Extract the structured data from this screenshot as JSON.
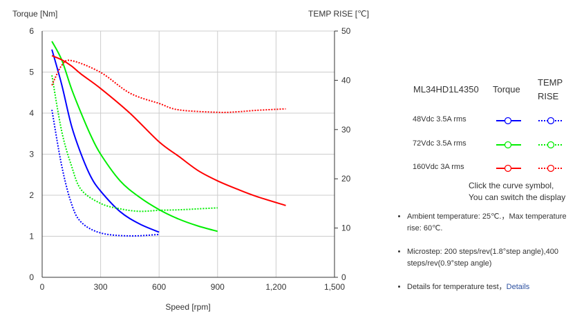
{
  "chart_data": {
    "type": "line",
    "xlabel": "Speed [rpm]",
    "ylabel": "Torque  [Nm]",
    "y2label": "TEMP RISE [℃]",
    "xlim": [
      0,
      1500
    ],
    "ylim": [
      0,
      6
    ],
    "y2lim": [
      0,
      50
    ],
    "xticks": [
      "0",
      "300",
      "600",
      "900",
      "1,200",
      "1,500"
    ],
    "yticks": [
      "0",
      "1",
      "2",
      "3",
      "4",
      "5",
      "6"
    ],
    "y2ticks": [
      "0",
      "10",
      "20",
      "30",
      "40",
      "50"
    ],
    "grid": true,
    "series": [
      {
        "name": "48Vdc 3.5A rms",
        "kind": "torque",
        "axis": "left",
        "color": "#0000ff",
        "x": [
          50,
          100,
          150,
          200,
          250,
          300,
          400,
          500,
          600
        ],
        "y": [
          5.55,
          4.7,
          3.7,
          3.0,
          2.45,
          2.1,
          1.6,
          1.3,
          1.1
        ]
      },
      {
        "name": "48Vdc 3.5A rms",
        "kind": "temp",
        "axis": "right",
        "color": "#0000ff",
        "x": [
          50,
          100,
          150,
          200,
          300,
          450,
          600
        ],
        "y": [
          34,
          22.7,
          15,
          11.2,
          9,
          8.4,
          8.7
        ]
      },
      {
        "name": "72Vdc 3.5A rms",
        "kind": "torque",
        "axis": "left",
        "color": "#00ee00",
        "x": [
          50,
          100,
          150,
          200,
          250,
          300,
          400,
          500,
          600,
          700,
          800,
          900
        ],
        "y": [
          5.75,
          5.3,
          4.6,
          4.0,
          3.45,
          3.0,
          2.35,
          1.95,
          1.65,
          1.42,
          1.25,
          1.12
        ]
      },
      {
        "name": "72Vdc 3.5A rms",
        "kind": "temp",
        "axis": "right",
        "color": "#00ee00",
        "x": [
          50,
          100,
          150,
          200,
          300,
          400,
          500,
          600,
          700,
          800,
          900
        ],
        "y": [
          41,
          29.7,
          22.7,
          17.8,
          15,
          13.9,
          13.4,
          13.6,
          13.7,
          13.9,
          14.1
        ]
      },
      {
        "name": "160Vdc 3A rms",
        "kind": "torque",
        "axis": "left",
        "color": "#ff0000",
        "x": [
          50,
          100,
          150,
          200,
          300,
          450,
          600,
          700,
          800,
          900,
          1000,
          1100,
          1250
        ],
        "y": [
          5.4,
          5.3,
          5.15,
          4.95,
          4.6,
          4.0,
          3.3,
          2.95,
          2.6,
          2.35,
          2.15,
          1.97,
          1.75
        ]
      },
      {
        "name": "160Vdc 3A rms",
        "kind": "temp",
        "axis": "right",
        "color": "#ff0000",
        "x": [
          50,
          100,
          150,
          300,
          450,
          600,
          700,
          900,
          1000,
          1100,
          1250
        ],
        "y": [
          39,
          43,
          44,
          41.6,
          37.4,
          35.3,
          34,
          33.5,
          33.6,
          33.9,
          34.2
        ]
      }
    ]
  },
  "legend": {
    "model": "ML34HD1L4350",
    "torque": "Torque",
    "temp": "TEMP RISE",
    "rows": [
      {
        "label": "48Vdc   3.5A rms",
        "color": "#0000ff"
      },
      {
        "label": "72Vdc   3.5A rms",
        "color": "#00ee00"
      },
      {
        "label": "160Vdc   3A rms",
        "color": "#ff0000"
      }
    ],
    "hint1": "Click the curve symbol,",
    "hint2": "You can switch the display"
  },
  "notes": {
    "n1": "Ambient temperature: 25℃.，Max temperature rise: 60℃.",
    "n2": "Microstep: 200 steps/rev(1.8°step angle),400 steps/rev(0.9°step angle)",
    "n3": "Details for temperature test，",
    "link": "Details"
  }
}
